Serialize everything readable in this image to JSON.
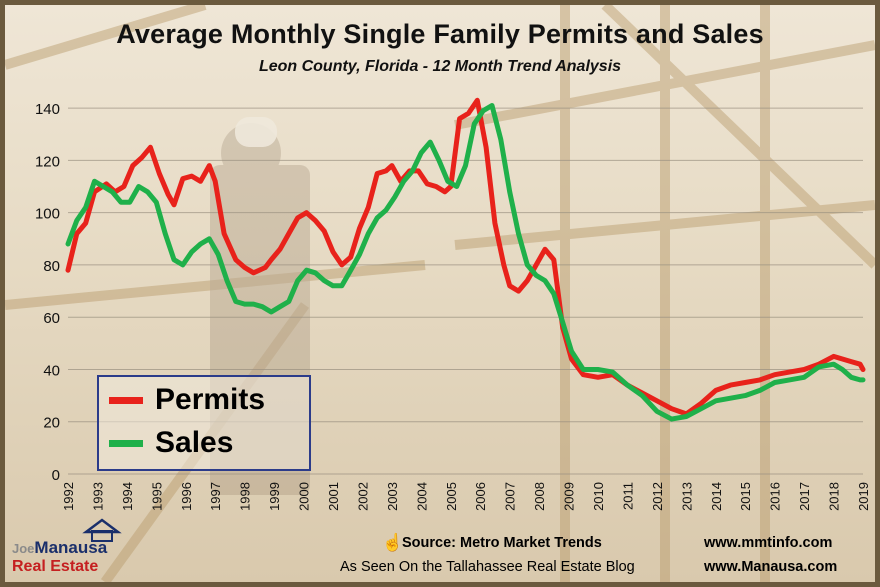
{
  "title": "Average Monthly Single Family Permits and Sales",
  "subtitle": "Leon County, Florida - 12 Month Trend Analysis",
  "legend": {
    "permits": "Permits",
    "sales": "Sales"
  },
  "footer": {
    "source": "Source: Metro Market Trends",
    "source_url": "www.mmtinfo.com",
    "seen_on": "As Seen On the Tallahassee Real Estate Blog",
    "seen_url": "www.Manausa.com"
  },
  "logo": {
    "line1_a": "Joe",
    "line1_b": "Manausa",
    "line2": "Real Estate"
  },
  "colors": {
    "permits": "#e8221b",
    "sales": "#1fb04a",
    "grid": "#9a9080",
    "text": "#111111"
  },
  "chart_data": {
    "type": "line",
    "title": "Average Monthly Single Family Permits and Sales",
    "subtitle": "Leon County, Florida - 12 Month Trend Analysis",
    "xlabel": "",
    "ylabel": "",
    "ylim": [
      0,
      150
    ],
    "xlim": [
      1992,
      2019
    ],
    "y_ticks": [
      0,
      20,
      40,
      60,
      80,
      100,
      120,
      140
    ],
    "x_ticks": [
      "1992",
      "1993",
      "1994",
      "1995",
      "1996",
      "1997",
      "1998",
      "1999",
      "2000",
      "2001",
      "2002",
      "2003",
      "2004",
      "2005",
      "2006",
      "2007",
      "2008",
      "2009",
      "2010",
      "2011",
      "2012",
      "2013",
      "2014",
      "2015",
      "2016",
      "2017",
      "2018",
      "2019"
    ],
    "grid": true,
    "legend_position": "bottom-left",
    "series": [
      {
        "name": "Permits",
        "color": "#e8221b",
        "points": [
          [
            1992.0,
            78
          ],
          [
            1992.3,
            92
          ],
          [
            1992.6,
            96
          ],
          [
            1992.9,
            108
          ],
          [
            1993.3,
            111
          ],
          [
            1993.6,
            108
          ],
          [
            1993.9,
            110
          ],
          [
            1994.2,
            118
          ],
          [
            1994.5,
            121
          ],
          [
            1994.8,
            125
          ],
          [
            1995.1,
            115
          ],
          [
            1995.4,
            107
          ],
          [
            1995.6,
            103
          ],
          [
            1995.9,
            113
          ],
          [
            1996.2,
            114
          ],
          [
            1996.5,
            112
          ],
          [
            1996.8,
            118
          ],
          [
            1997.0,
            112
          ],
          [
            1997.3,
            92
          ],
          [
            1997.7,
            82
          ],
          [
            1998.0,
            79
          ],
          [
            1998.3,
            77
          ],
          [
            1998.7,
            79
          ],
          [
            1998.9,
            82
          ],
          [
            1999.2,
            86
          ],
          [
            1999.5,
            92
          ],
          [
            1999.8,
            98
          ],
          [
            2000.1,
            100
          ],
          [
            2000.4,
            97
          ],
          [
            2000.7,
            93
          ],
          [
            2001.0,
            85
          ],
          [
            2001.3,
            80
          ],
          [
            2001.6,
            83
          ],
          [
            2001.9,
            94
          ],
          [
            2002.2,
            102
          ],
          [
            2002.5,
            115
          ],
          [
            2002.8,
            116
          ],
          [
            2003.0,
            118
          ],
          [
            2003.3,
            112
          ],
          [
            2003.6,
            116
          ],
          [
            2003.9,
            116
          ],
          [
            2004.2,
            111
          ],
          [
            2004.5,
            110
          ],
          [
            2004.8,
            108
          ],
          [
            2005.0,
            110
          ],
          [
            2005.3,
            136
          ],
          [
            2005.6,
            138
          ],
          [
            2005.9,
            143
          ],
          [
            2006.2,
            125
          ],
          [
            2006.5,
            96
          ],
          [
            2006.8,
            80
          ],
          [
            2007.0,
            72
          ],
          [
            2007.3,
            70
          ],
          [
            2007.6,
            74
          ],
          [
            2007.9,
            80
          ],
          [
            2008.2,
            86
          ],
          [
            2008.5,
            82
          ],
          [
            2008.8,
            56
          ],
          [
            2009.1,
            44
          ],
          [
            2009.5,
            38
          ],
          [
            2010.0,
            37
          ],
          [
            2010.5,
            38
          ],
          [
            2011.0,
            34
          ],
          [
            2011.5,
            31
          ],
          [
            2012.0,
            28
          ],
          [
            2012.5,
            25
          ],
          [
            2013.0,
            23
          ],
          [
            2013.5,
            27
          ],
          [
            2014.0,
            32
          ],
          [
            2014.5,
            34
          ],
          [
            2015.0,
            35
          ],
          [
            2015.5,
            36
          ],
          [
            2016.0,
            38
          ],
          [
            2016.5,
            39
          ],
          [
            2017.0,
            40
          ],
          [
            2017.5,
            42
          ],
          [
            2018.0,
            45
          ],
          [
            2018.3,
            44
          ],
          [
            2018.6,
            43
          ],
          [
            2018.9,
            42
          ],
          [
            2019.0,
            40
          ]
        ]
      },
      {
        "name": "Sales",
        "color": "#1fb04a",
        "points": [
          [
            1992.0,
            88
          ],
          [
            1992.3,
            97
          ],
          [
            1992.6,
            102
          ],
          [
            1992.9,
            112
          ],
          [
            1993.2,
            110
          ],
          [
            1993.5,
            108
          ],
          [
            1993.8,
            104
          ],
          [
            1994.1,
            104
          ],
          [
            1994.4,
            110
          ],
          [
            1994.7,
            108
          ],
          [
            1995.0,
            104
          ],
          [
            1995.3,
            92
          ],
          [
            1995.6,
            82
          ],
          [
            1995.9,
            80
          ],
          [
            1996.2,
            85
          ],
          [
            1996.5,
            88
          ],
          [
            1996.8,
            90
          ],
          [
            1997.1,
            84
          ],
          [
            1997.4,
            74
          ],
          [
            1997.7,
            66
          ],
          [
            1998.0,
            65
          ],
          [
            1998.3,
            65
          ],
          [
            1998.6,
            64
          ],
          [
            1998.9,
            62
          ],
          [
            1999.2,
            64
          ],
          [
            1999.5,
            66
          ],
          [
            1999.8,
            74
          ],
          [
            2000.1,
            78
          ],
          [
            2000.4,
            77
          ],
          [
            2000.7,
            74
          ],
          [
            2001.0,
            72
          ],
          [
            2001.3,
            72
          ],
          [
            2001.6,
            78
          ],
          [
            2001.9,
            84
          ],
          [
            2002.2,
            92
          ],
          [
            2002.5,
            98
          ],
          [
            2002.8,
            101
          ],
          [
            2003.1,
            106
          ],
          [
            2003.4,
            112
          ],
          [
            2003.7,
            116
          ],
          [
            2004.0,
            123
          ],
          [
            2004.3,
            127
          ],
          [
            2004.6,
            120
          ],
          [
            2004.9,
            112
          ],
          [
            2005.2,
            110
          ],
          [
            2005.5,
            118
          ],
          [
            2005.8,
            134
          ],
          [
            2006.1,
            139
          ],
          [
            2006.4,
            141
          ],
          [
            2006.7,
            128
          ],
          [
            2007.0,
            108
          ],
          [
            2007.3,
            92
          ],
          [
            2007.6,
            80
          ],
          [
            2007.9,
            76
          ],
          [
            2008.2,
            74
          ],
          [
            2008.5,
            69
          ],
          [
            2008.8,
            58
          ],
          [
            2009.1,
            47
          ],
          [
            2009.5,
            40
          ],
          [
            2010.0,
            40
          ],
          [
            2010.5,
            39
          ],
          [
            2011.0,
            34
          ],
          [
            2011.5,
            30
          ],
          [
            2012.0,
            24
          ],
          [
            2012.5,
            21
          ],
          [
            2013.0,
            22
          ],
          [
            2013.5,
            25
          ],
          [
            2014.0,
            28
          ],
          [
            2014.5,
            29
          ],
          [
            2015.0,
            30
          ],
          [
            2015.5,
            32
          ],
          [
            2016.0,
            35
          ],
          [
            2016.5,
            36
          ],
          [
            2017.0,
            37
          ],
          [
            2017.5,
            41
          ],
          [
            2018.0,
            42
          ],
          [
            2018.3,
            40
          ],
          [
            2018.6,
            37
          ],
          [
            2018.9,
            36
          ],
          [
            2019.0,
            36
          ]
        ]
      }
    ]
  }
}
